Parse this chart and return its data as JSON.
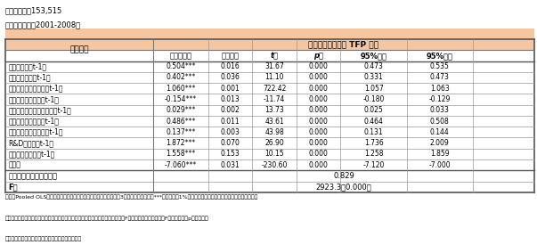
{
  "title_line1": "サンプル数：153,515",
  "title_line2": "サンプル期間：2001-2008年",
  "header_col": "説明変数",
  "header_group": "被説明変数：相対 TFP 水準",
  "sub_headers": [
    "係数推定値",
    "標準誤差",
    "t値",
    "p値",
    "95%下限",
    "95%上限"
  ],
  "rows": [
    [
      "輸出集約度（t-1）",
      "0.504***",
      "0.016",
      "31.67",
      "0.000",
      "0.473",
      "0.535"
    ],
    [
      "海外出資比率（t-1）",
      "0.402***",
      "0.036",
      "11.10",
      "0.000",
      "0.331",
      "0.473"
    ],
    [
      "総従業者数の対数値（t-1）",
      "1.060***",
      "0.001",
      "722.42",
      "0.000",
      "1.057",
      "1.063"
    ],
    [
      "企業年齢の対数値（t-1）",
      "-0.154***",
      "0.013",
      "-11.74",
      "0.000",
      "-0.180",
      "-0.129"
    ],
    [
      "企業年齢の対数値の二乗（t-1）",
      "0.029***",
      "0.002",
      "13.73",
      "0.000",
      "0.025",
      "0.033"
    ],
    [
      "外資系企業ダミー（t-1）",
      "0.486***",
      "0.011",
      "43.61",
      "0.000",
      "0.464",
      "0.508"
    ],
    [
      "日本の子会社ダミー（t-1）",
      "0.137***",
      "0.003",
      "43.98",
      "0.000",
      "0.131",
      "0.144"
    ],
    [
      "R&D集約度（t-1）",
      "1.872***",
      "0.070",
      "26.90",
      "0.000",
      "1.736",
      "2.009"
    ],
    [
      "情報化投資比率（t-1）",
      "1.558***",
      "0.153",
      "10.15",
      "0.000",
      "1.258",
      "1.859"
    ],
    [
      "定数項",
      "-7.060***",
      "0.031",
      "-230.60",
      "0.000",
      "-7.120",
      "-7.000"
    ]
  ],
  "footer_rows": [
    [
      "自由度修正済み決定係数",
      "0.829"
    ],
    [
      "F値",
      "2923.3（0.000）"
    ]
  ],
  "note_line1": "備考：Pooled OLSによる推定。推定式には年ダミー、産業ダミー（3桁レベル）を含む。***は有意水準1%で統計的に有意であることを示す。外資系企業",
  "note_line2": "ダミー、日本の子会社ダミーは、日本の独立系企業をベンチマークとしている。F値の横の括弧内の数字はF値に対応するp値である。",
  "source_line": "資料：経済産業省「企業活動基本調査」から作成。",
  "header_bg": "#f5c6a0",
  "border_color": "#999999"
}
